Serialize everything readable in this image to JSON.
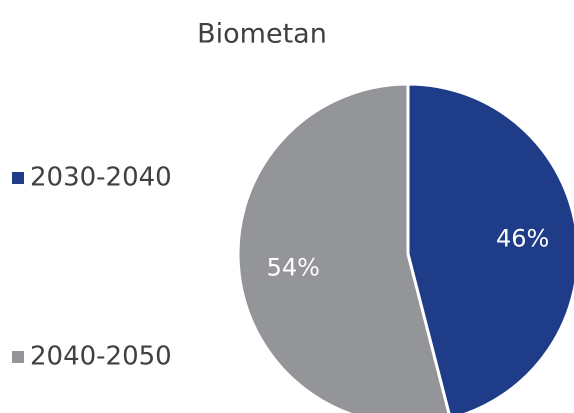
{
  "chart_data": {
    "type": "pie",
    "title": "Biometan",
    "categories": [
      "2030-2040",
      "2040-2050"
    ],
    "values": [
      46,
      54
    ],
    "value_labels": [
      "46%",
      "54%"
    ],
    "colors": [
      "#1f3c88",
      "#939598"
    ],
    "legend": "left"
  }
}
